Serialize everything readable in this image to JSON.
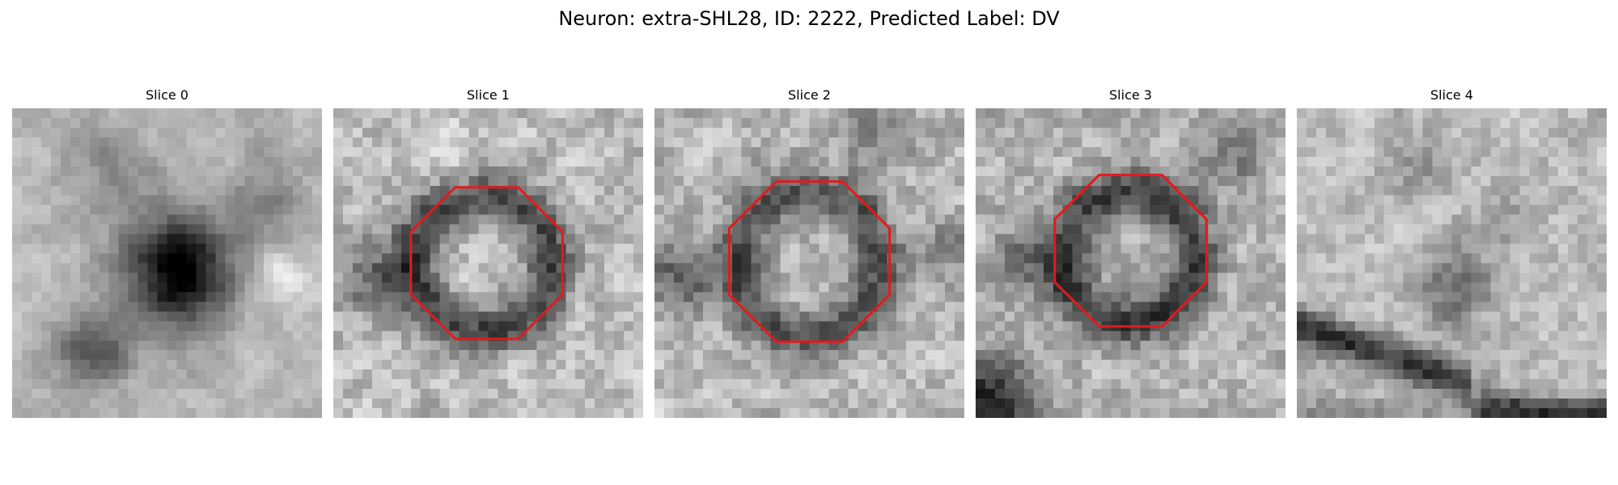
{
  "figure": {
    "title": "Neuron: extra-SHL28, ID: 2222, Predicted Label: DV"
  },
  "panels": [
    {
      "title": "Slice 0",
      "roi_outline": false
    },
    {
      "title": "Slice 1",
      "roi_outline": true
    },
    {
      "title": "Slice 2",
      "roi_outline": true
    },
    {
      "title": "Slice 3",
      "roi_outline": true
    },
    {
      "title": "Slice 4",
      "roi_outline": false
    }
  ],
  "colors": {
    "roi_outline": "#e31a1c",
    "colormap": "gray"
  }
}
